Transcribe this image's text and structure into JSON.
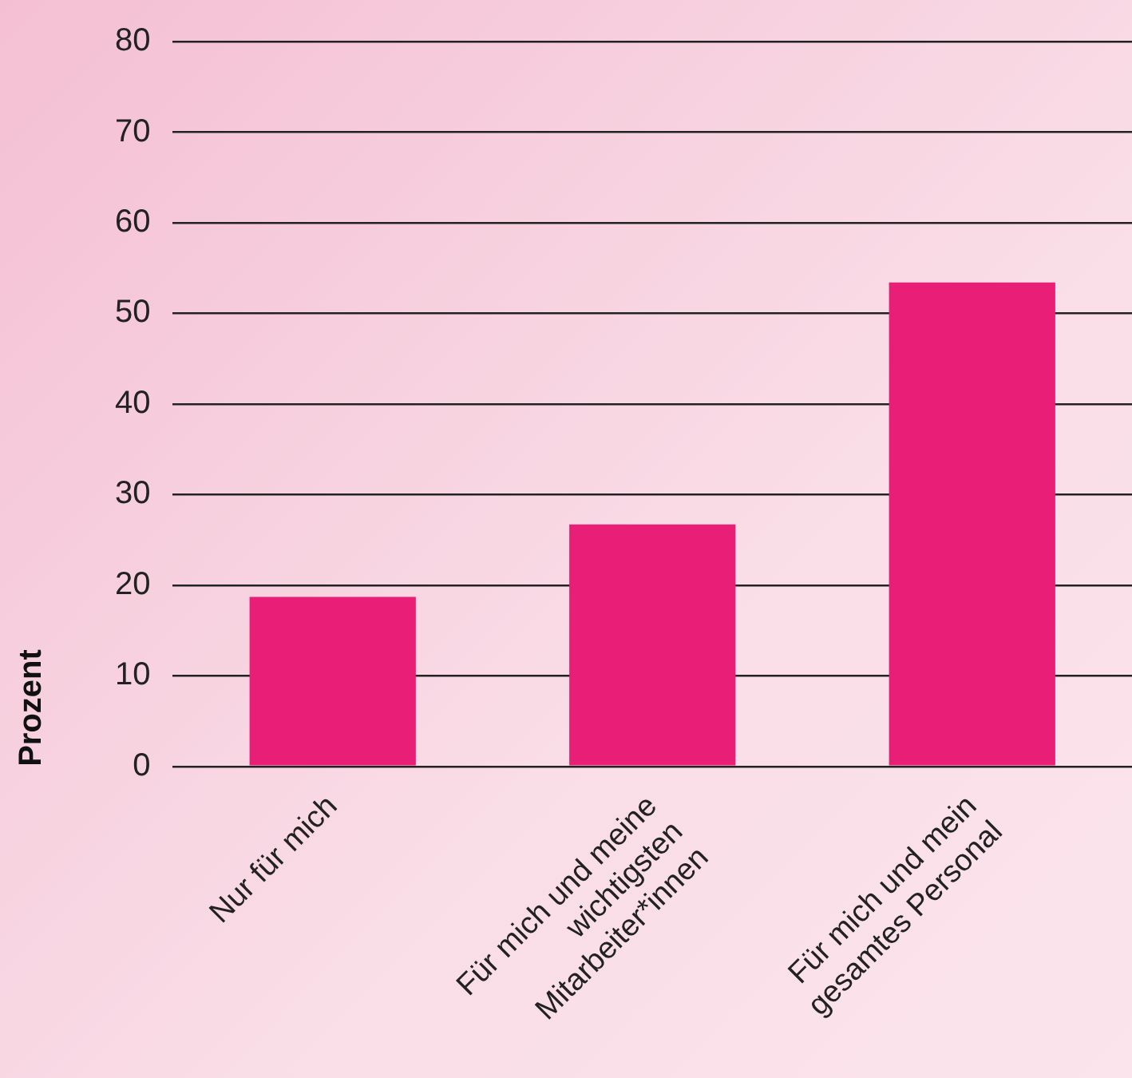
{
  "chart_data": {
    "type": "bar",
    "ylabel": "Prozent",
    "categories": [
      "Nur für mich",
      "Für mich und meine\nwichtigsten\nMitarbeiter*innen",
      "Für mich und mein\ngesamtes Personal"
    ],
    "values": [
      18.7,
      26.7,
      53.4
    ],
    "color": "#e91e76",
    "ylim": [
      0,
      80
    ],
    "yticks": [
      0,
      10,
      20,
      30,
      40,
      50,
      60,
      70,
      80
    ],
    "grid": "y"
  }
}
